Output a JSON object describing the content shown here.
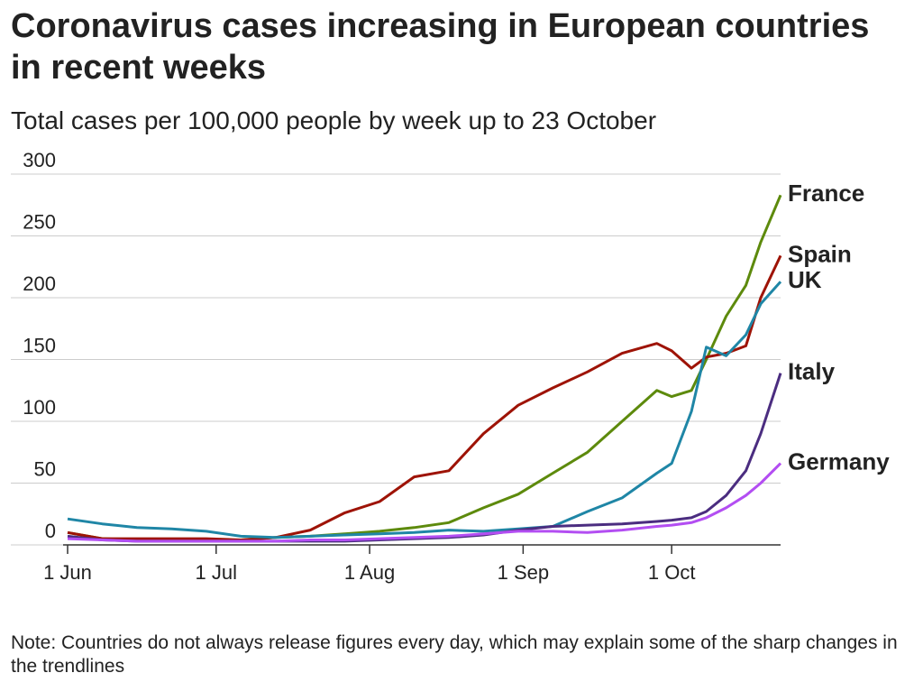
{
  "chart_data": {
    "type": "line",
    "title": "Coronavirus cases increasing in European countries in recent weeks",
    "subtitle": "Total cases per 100,000 people by week up to 23 October",
    "note": "Note: Countries do not always release figures every day, which may explain some of the sharp changes in the trendlines",
    "x": [
      "1 Jun",
      "8 Jun",
      "15 Jun",
      "22 Jun",
      "29 Jun",
      "6 Jul",
      "13 Jul",
      "20 Jul",
      "27 Jul",
      "3 Aug",
      "10 Aug",
      "17 Aug",
      "24 Aug",
      "31 Aug",
      "7 Sep",
      "14 Sep",
      "21 Sep",
      "28 Sep",
      "1 Oct",
      "5 Oct",
      "8 Oct",
      "12 Oct",
      "16 Oct",
      "19 Oct",
      "23 Oct"
    ],
    "xlim": [
      "1 Jun",
      "23 Oct"
    ],
    "xticks": [
      "1 Jun",
      "1 Jul",
      "1 Aug",
      "1 Sep",
      "1 Oct"
    ],
    "ylim": [
      0,
      300
    ],
    "yticks": [
      0,
      50,
      100,
      150,
      200,
      250,
      300
    ],
    "grid": true,
    "series": [
      {
        "name": "France",
        "color": "#5d8a0c",
        "values": [
          10,
          5,
          4,
          4,
          4,
          4,
          6,
          7,
          9,
          11,
          14,
          18,
          30,
          41,
          58,
          75,
          100,
          125,
          120,
          125,
          150,
          185,
          210,
          245,
          283
        ]
      },
      {
        "name": "Spain",
        "color": "#9e1306",
        "values": [
          10,
          5,
          5,
          5,
          5,
          4,
          6,
          12,
          26,
          35,
          55,
          60,
          90,
          113,
          127,
          140,
          155,
          163,
          157,
          143,
          152,
          155,
          161,
          200,
          234
        ]
      },
      {
        "name": "UK",
        "color": "#1f86a6",
        "values": [
          21,
          17,
          14,
          13,
          11,
          7,
          6,
          7,
          8,
          9,
          10,
          12,
          11,
          13,
          15,
          27,
          38,
          58,
          66,
          108,
          160,
          153,
          170,
          195,
          213
        ]
      },
      {
        "name": "Italy",
        "color": "#4b2d80",
        "values": [
          7,
          4,
          3,
          3,
          3,
          3,
          3,
          3,
          3,
          4,
          5,
          6,
          8,
          12,
          15,
          16,
          17,
          19,
          20,
          22,
          27,
          40,
          60,
          90,
          139
        ]
      },
      {
        "name": "Germany",
        "color": "#b34ef2",
        "values": [
          5,
          4,
          3,
          3,
          3,
          3,
          3,
          4,
          4,
          5,
          6,
          7,
          9,
          11,
          11,
          10,
          12,
          15,
          16,
          18,
          22,
          30,
          40,
          50,
          66
        ]
      }
    ]
  }
}
